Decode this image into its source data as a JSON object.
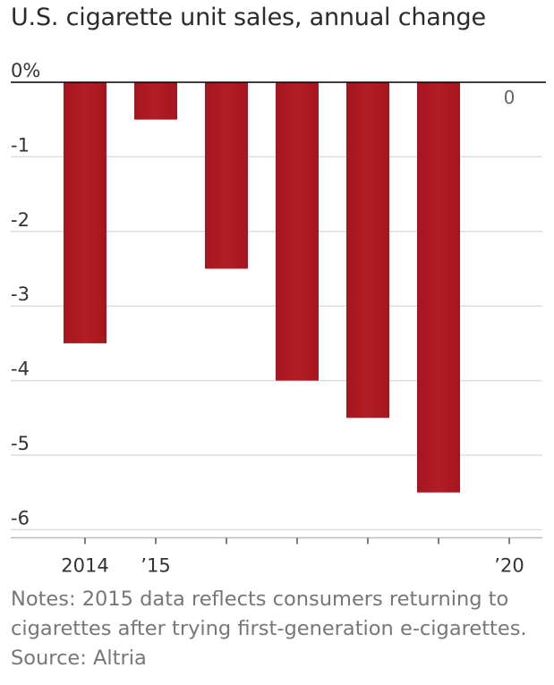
{
  "title": "U.S. cigarette unit sales, annual change",
  "notes": {
    "line1": "Notes: 2015 data reflects consumers returning to",
    "line2": "cigarettes after trying first-generation e-cigarettes.",
    "source": "Source: Altria"
  },
  "colors": {
    "bar": "#b31c27",
    "grid": "#dddddd",
    "axis": "#000000"
  },
  "chart_data": {
    "type": "bar",
    "title": "U.S. cigarette unit sales, annual change",
    "categories": [
      "2014",
      "2015",
      "2016",
      "2017",
      "2018",
      "2019",
      "2020"
    ],
    "x_tick_labels": [
      "2014",
      "’15",
      "",
      "",
      "",
      "",
      "’20"
    ],
    "values": [
      -3.5,
      -0.5,
      -2.5,
      -4.0,
      -4.5,
      -5.5,
      0
    ],
    "y_tick_labels": [
      "0%",
      "-1",
      "-2",
      "-3",
      "-4",
      "-5",
      "-6"
    ],
    "y_ticks": [
      0,
      -1,
      -2,
      -3,
      -4,
      -5,
      -6
    ],
    "ylim": [
      -6,
      0
    ],
    "unit": "%",
    "annotations": [
      {
        "category": "2020",
        "label": "0"
      }
    ],
    "grid": true,
    "xlabel": "",
    "ylabel": ""
  }
}
